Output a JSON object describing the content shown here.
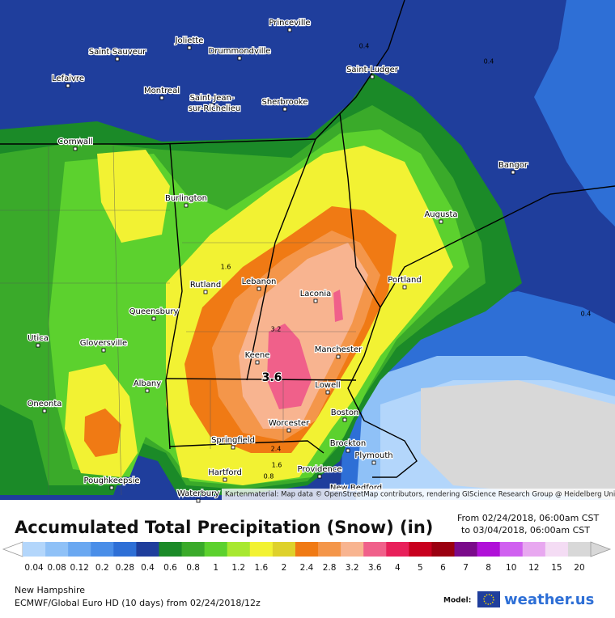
{
  "map": {
    "cities": [
      "Princeville",
      "Joliette",
      "Saint-Sauveur",
      "Drummondville",
      "Saint-Ludger",
      "Lefaivre",
      "Montreal",
      "Saint-Jean-",
      "sur-Richelieu",
      "Sherbrooke",
      "Cornwall",
      "Bangor",
      "Burlington",
      "Augusta",
      "Rutland",
      "Lebanon",
      "Portland",
      "Laconia",
      "Queensbury",
      "Utica",
      "Gloversville",
      "Manchester",
      "Keene",
      "Lowell",
      "Albany",
      "Oneonta",
      "Boston",
      "Worcester",
      "Springfield",
      "Brockton",
      "Plymouth",
      "Hartford",
      "Providence",
      "New Bedford",
      "Poughkeepsie",
      "Waterbury"
    ],
    "contour_labels": [
      0.4,
      0.4,
      1.6,
      3.2,
      3.6,
      2.4,
      1.6,
      0.8,
      0.4
    ],
    "attribution": "Kartenmaterial: Map data © OpenStreetMap contributors, rendering GIScience Research Group @ Heidelberg University"
  },
  "header": {
    "title": "Accumulated Total Precipitation (Snow) (in)",
    "from": "From 02/24/2018, 06:00am CST",
    "to": "to 03/04/2018, 06:00am CST"
  },
  "legend": {
    "ticks": [
      0.04,
      0.08,
      0.12,
      0.2,
      0.28,
      0.4,
      0.6,
      0.8,
      1,
      1.2,
      1.6,
      2,
      2.4,
      2.8,
      3.2,
      3.6,
      4,
      5,
      6,
      7,
      8,
      10,
      12,
      15,
      20
    ],
    "colors": [
      "#b3d6fb",
      "#8fc1f7",
      "#6aa8f1",
      "#4a8ee8",
      "#2e6fd6",
      "#1f3e9c",
      "#1b8a28",
      "#3aaa2a",
      "#5cd12e",
      "#a8e830",
      "#f2f233",
      "#ded12b",
      "#f07a14",
      "#f4964a",
      "#f8b490",
      "#f0608a",
      "#e8205a",
      "#c8001e",
      "#9a0010",
      "#7a0a8a",
      "#b010d8",
      "#d060f0",
      "#e8a8f0",
      "#f4dcf4",
      "#d8d8d8"
    ]
  },
  "footer": {
    "region": "New Hampshire",
    "model_run": "ECMWF/Global Euro HD (10 days) from 02/24/2018/12z",
    "model_label": "Model:",
    "brand": "weather.us"
  }
}
